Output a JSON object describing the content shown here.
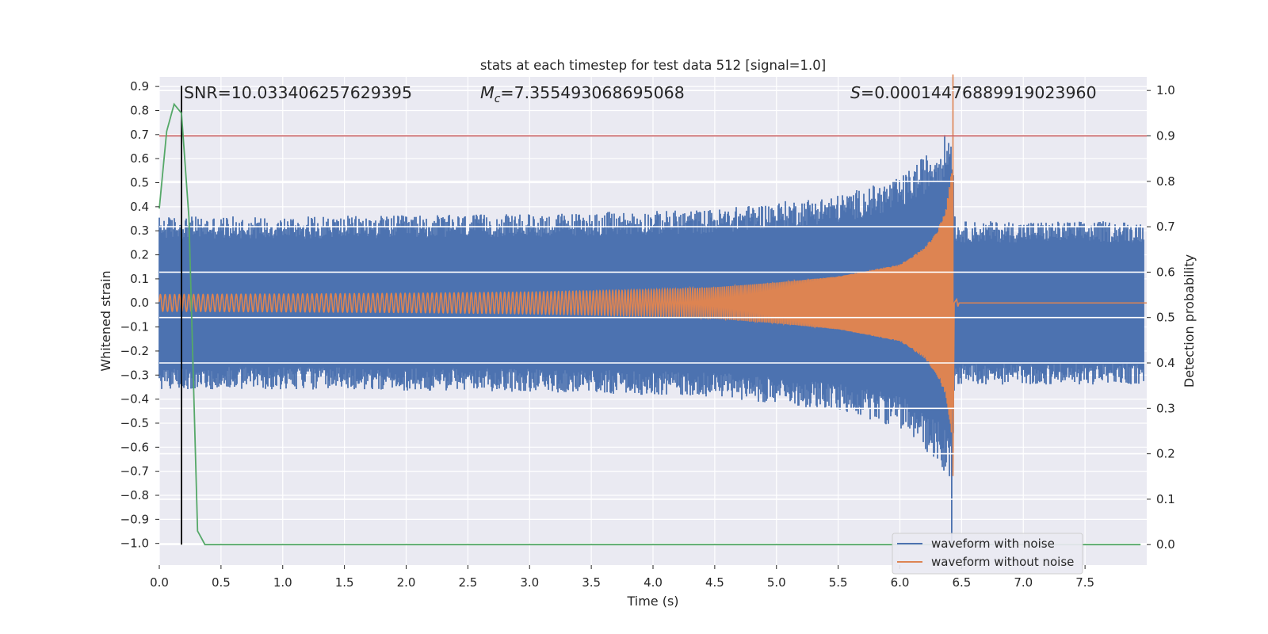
{
  "chart_data": {
    "type": "line",
    "title": "stats at each timestep for test data 512 [signal=1.0]",
    "xlabel": "Time (s)",
    "ylabel_left": "Whitened strain",
    "ylabel_right": "Detection probability",
    "xlim": [
      0.0,
      8.0
    ],
    "ylim_left": [
      -1.09,
      0.94
    ],
    "ylim_right": [
      -0.045,
      1.03
    ],
    "xticks": [
      0.0,
      0.5,
      1.0,
      1.5,
      2.0,
      2.5,
      3.0,
      3.5,
      4.0,
      4.5,
      5.0,
      5.5,
      6.0,
      6.5,
      7.0,
      7.5
    ],
    "xtick_labels": [
      "0.0",
      "0.5",
      "1.0",
      "1.5",
      "2.0",
      "2.5",
      "3.0",
      "3.5",
      "4.0",
      "4.5",
      "5.0",
      "5.5",
      "6.0",
      "6.5",
      "7.0",
      "7.5"
    ],
    "yticks_left": [
      0.9,
      0.8,
      0.7,
      0.6,
      0.5,
      0.4,
      0.3,
      0.2,
      0.1,
      0.0,
      -0.1,
      -0.2,
      -0.3,
      -0.4,
      -0.5,
      -0.6,
      -0.7,
      -0.8,
      -0.9,
      -1.0
    ],
    "ytick_labels_left": [
      "0.9",
      "0.8",
      "0.7",
      "0.6",
      "0.5",
      "0.4",
      "0.3",
      "0.2",
      "0.1",
      "0.0",
      "−0.1",
      "−0.2",
      "−0.3",
      "−0.4",
      "−0.5",
      "−0.6",
      "−0.7",
      "−0.8",
      "−0.9",
      "−1.0"
    ],
    "yticks_right": [
      1.0,
      0.9,
      0.8,
      0.7,
      0.6,
      0.5,
      0.4,
      0.3,
      0.2,
      0.1,
      0.0
    ],
    "ytick_labels_right": [
      "1.0",
      "0.9",
      "0.8",
      "0.7",
      "0.6",
      "0.5",
      "0.4",
      "0.3",
      "0.2",
      "0.1",
      "0.0"
    ],
    "annotations": {
      "snr": "SNR=10.033406257629395",
      "mc_symbol": "M",
      "mc_subscript": "c",
      "mc_value": "=7.355493068695068",
      "s_symbol": "S",
      "s_value": "=0.00014476889919023960"
    },
    "series": [
      {
        "name": "waveform with noise",
        "color": "#4c72b0",
        "axis": "left",
        "description": "noisy whitened strain, envelope about ±0.35 growing near merger",
        "envelope_points": [
          {
            "t": 0.0,
            "amp": 0.36
          },
          {
            "t": 1.0,
            "amp": 0.36
          },
          {
            "t": 3.0,
            "amp": 0.37
          },
          {
            "t": 4.5,
            "amp": 0.39
          },
          {
            "t": 5.5,
            "amp": 0.45
          },
          {
            "t": 6.0,
            "amp": 0.52
          },
          {
            "t": 6.3,
            "amp": 0.66
          },
          {
            "t": 6.42,
            "amp": 0.74
          },
          {
            "t": 6.45,
            "amp": 0.34
          },
          {
            "t": 8.0,
            "amp": 0.34
          }
        ],
        "min_dip": {
          "t": 6.42,
          "value": -1.0
        }
      },
      {
        "name": "waveform without noise",
        "color": "#dd8452",
        "axis": "left",
        "description": "chirp signal whose amplitude grows until merger near t=6.43 s",
        "envelope_points": [
          {
            "t": 0.0,
            "amp": 0.035
          },
          {
            "t": 1.0,
            "amp": 0.037
          },
          {
            "t": 2.0,
            "amp": 0.04
          },
          {
            "t": 3.0,
            "amp": 0.045
          },
          {
            "t": 4.0,
            "amp": 0.055
          },
          {
            "t": 4.5,
            "amp": 0.065
          },
          {
            "t": 5.0,
            "amp": 0.085
          },
          {
            "t": 5.5,
            "amp": 0.11
          },
          {
            "t": 6.0,
            "amp": 0.16
          },
          {
            "t": 6.2,
            "amp": 0.23
          },
          {
            "t": 6.3,
            "amp": 0.3
          },
          {
            "t": 6.37,
            "amp": 0.38
          },
          {
            "t": 6.42,
            "amp": 0.55
          },
          {
            "t": 6.44,
            "amp": 0.0
          }
        ],
        "peak": {
          "t": 6.43,
          "high": 0.95,
          "low": -0.72
        },
        "ringdown_blip": {
          "t": 6.46,
          "amp": 0.015
        },
        "frequency_start_hz": 26,
        "frequency_end_hz": 150
      },
      {
        "name": "detection probability",
        "color": "#55a868",
        "axis": "right",
        "x": [
          0.0,
          0.06,
          0.12,
          0.18,
          0.24,
          0.31,
          0.37,
          0.5,
          7.95
        ],
        "y": [
          0.74,
          0.91,
          0.97,
          0.95,
          0.72,
          0.03,
          0.0,
          0.0,
          0.0
        ]
      }
    ],
    "reference_lines": [
      {
        "type": "horizontal",
        "axis": "right",
        "value": 0.9,
        "color": "#c44e52",
        "label": "threshold"
      },
      {
        "type": "vertical",
        "x": 0.18,
        "color": "#000000",
        "y_from_right": 0.0,
        "y_to_right": 1.0
      }
    ],
    "legend": {
      "position": "lower-right",
      "entries": [
        "waveform with noise",
        "waveform without noise"
      ]
    },
    "grid": true,
    "background": "#eaeaf2"
  }
}
